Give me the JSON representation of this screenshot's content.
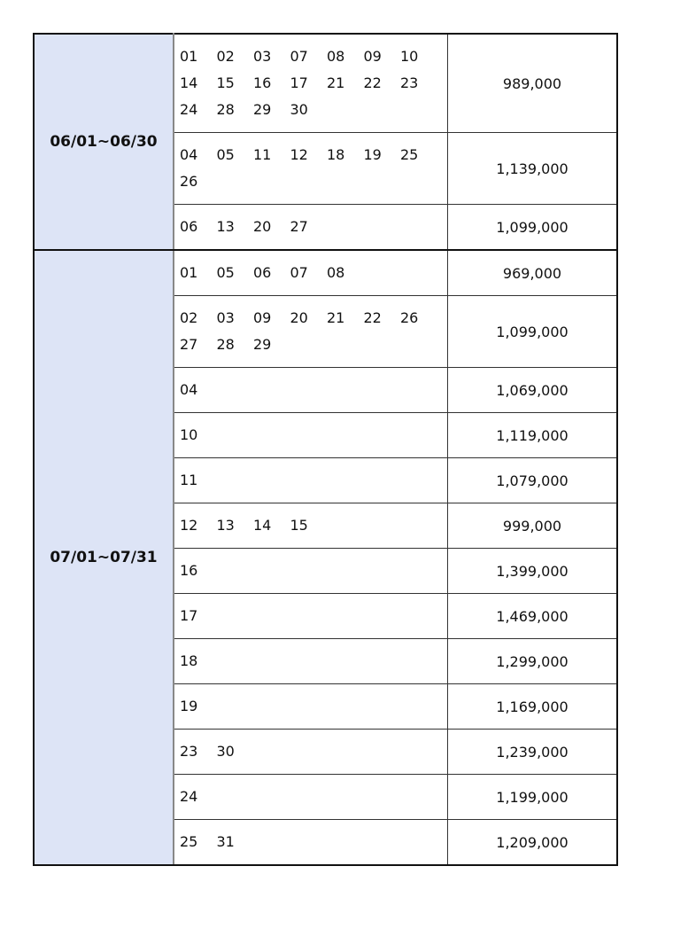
{
  "groups": [
    {
      "period": "06/01~06/30",
      "rows": [
        {
          "days": [
            "01",
            "02",
            "03",
            "07",
            "08",
            "09",
            "10",
            "14",
            "15",
            "16",
            "17",
            "21",
            "22",
            "23",
            "24",
            "28",
            "29",
            "30"
          ],
          "price": "989,000"
        },
        {
          "days": [
            "04",
            "05",
            "11",
            "12",
            "18",
            "19",
            "25",
            "26"
          ],
          "price": "1,139,000"
        },
        {
          "days": [
            "06",
            "13",
            "20",
            "27"
          ],
          "price": "1,099,000"
        }
      ]
    },
    {
      "period": "07/01~07/31",
      "rows": [
        {
          "days": [
            "01",
            "05",
            "06",
            "07",
            "08"
          ],
          "price": "969,000"
        },
        {
          "days": [
            "02",
            "03",
            "09",
            "20",
            "21",
            "22",
            "26",
            "27",
            "28",
            "29"
          ],
          "price": "1,099,000"
        },
        {
          "days": [
            "04"
          ],
          "price": "1,069,000"
        },
        {
          "days": [
            "10"
          ],
          "price": "1,119,000"
        },
        {
          "days": [
            "11"
          ],
          "price": "1,079,000"
        },
        {
          "days": [
            "12",
            "13",
            "14",
            "15"
          ],
          "price": "999,000"
        },
        {
          "days": [
            "16"
          ],
          "price": "1,399,000"
        },
        {
          "days": [
            "17"
          ],
          "price": "1,469,000"
        },
        {
          "days": [
            "18"
          ],
          "price": "1,299,000"
        },
        {
          "days": [
            "19"
          ],
          "price": "1,169,000"
        },
        {
          "days": [
            "23",
            "30"
          ],
          "price": "1,239,000"
        },
        {
          "days": [
            "24"
          ],
          "price": "1,199,000"
        },
        {
          "days": [
            "25",
            "31"
          ],
          "price": "1,209,000"
        }
      ]
    }
  ],
  "colors": {
    "period_bg": "#dde4f6"
  }
}
